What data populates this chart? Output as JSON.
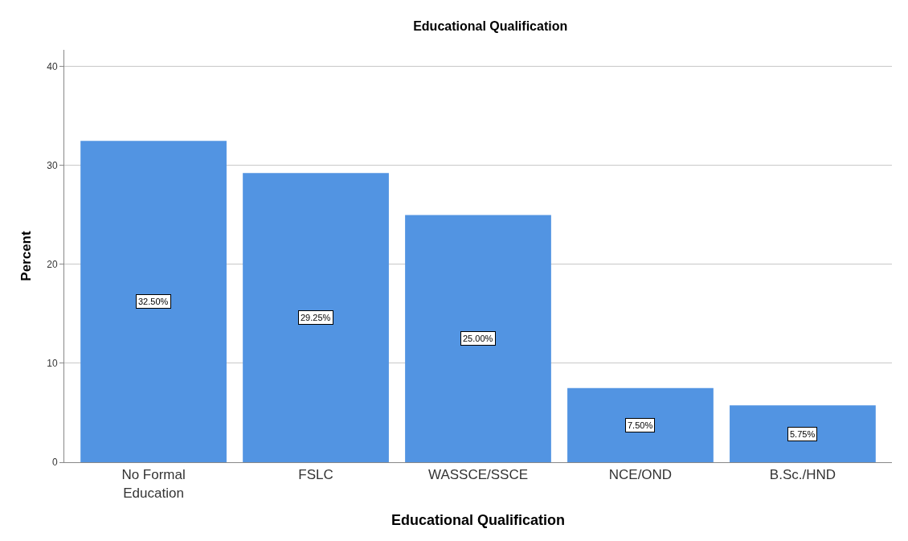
{
  "chart_data": {
    "type": "bar",
    "title": "Educational Qualification",
    "xlabel": "Educational Qualification",
    "ylabel": "Percent",
    "categories": [
      "No Formal Education",
      "FSLC",
      "WASSCE/SSCE",
      "NCE/OND",
      "B.Sc./HND"
    ],
    "values": [
      32.5,
      29.25,
      25.0,
      7.5,
      5.75
    ],
    "value_labels": [
      "32.50%",
      "29.25%",
      "25.00%",
      "7.50%",
      "5.75%"
    ],
    "color": "#5294e2",
    "ylim": [
      0,
      41.7
    ],
    "yticks": [
      0,
      10,
      20,
      30,
      40
    ],
    "grid": "y",
    "legend": false
  }
}
